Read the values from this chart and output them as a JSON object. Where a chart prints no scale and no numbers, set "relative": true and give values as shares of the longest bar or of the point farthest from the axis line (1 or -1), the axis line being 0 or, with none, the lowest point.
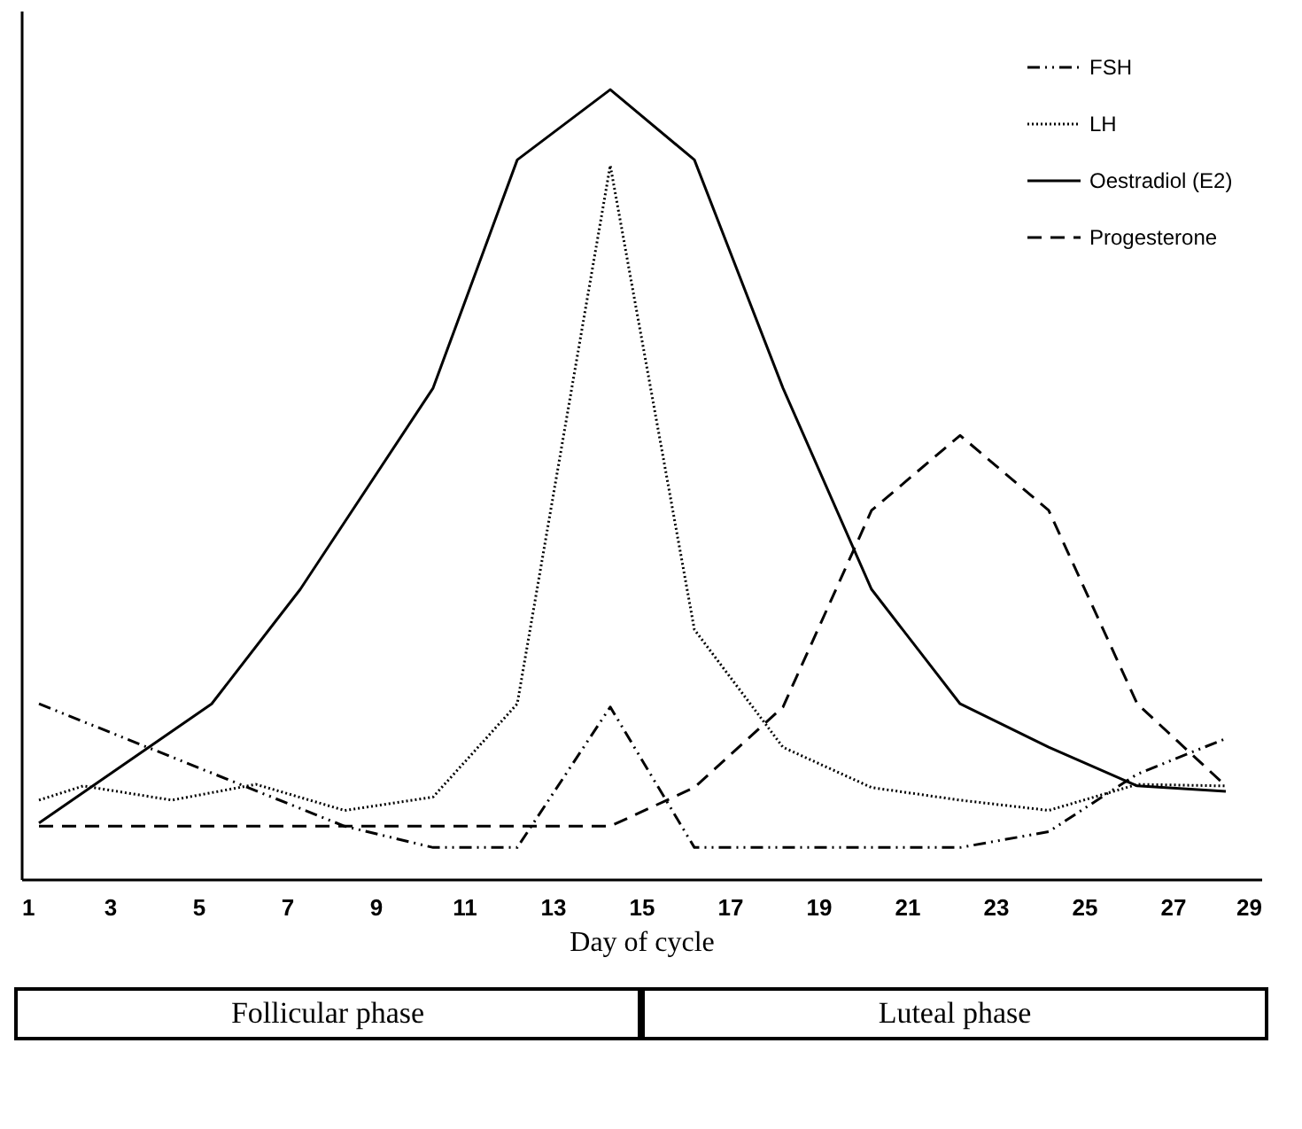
{
  "chart_data": {
    "type": "line",
    "relative": true,
    "xlabel": "Day of cycle",
    "xlim": [
      1,
      29
    ],
    "xticks": [
      1,
      3,
      5,
      7,
      9,
      11,
      13,
      15,
      17,
      19,
      21,
      23,
      25,
      27,
      29
    ],
    "grid": false,
    "legend": "top right",
    "marker": "none",
    "annotations": [
      "Follicular phase",
      "Luteal phase"
    ],
    "series": [
      {
        "name": "FSH",
        "color": "#000000",
        "line_style": "dashdot",
        "x": [
          1.4,
          8.3,
          10.3,
          12.2,
          14.3,
          16.2,
          22.2,
          24.2,
          26.2,
          28.2
        ],
        "values": [
          0.222,
          0.067,
          0.04,
          0.04,
          0.218,
          0.04,
          0.04,
          0.06,
          0.133,
          0.178
        ]
      },
      {
        "name": "LH",
        "color": "#000000",
        "line_style": "dotted",
        "x": [
          1.4,
          2.4,
          4.4,
          6.3,
          8.3,
          10.3,
          12.2,
          14.3,
          16.2,
          18.2,
          20.2,
          22.2,
          24.2,
          26.2,
          28.2
        ],
        "values": [
          0.1,
          0.118,
          0.1,
          0.12,
          0.087,
          0.104,
          0.222,
          0.904,
          0.316,
          0.167,
          0.116,
          0.1,
          0.087,
          0.12,
          0.118
        ]
      },
      {
        "name": "Oestradiol (E2)",
        "color": "#000000",
        "line_style": "solid",
        "x": [
          1.4,
          5.3,
          7.3,
          10.3,
          12.2,
          14.3,
          16.2,
          18.2,
          20.2,
          22.2,
          24.2,
          26.2,
          28.2
        ],
        "values": [
          0.071,
          0.222,
          0.367,
          0.622,
          0.911,
          1,
          0.911,
          0.622,
          0.367,
          0.222,
          0.167,
          0.118,
          0.111
        ]
      },
      {
        "name": "Progesterone",
        "color": "#000000",
        "line_style": "dashed",
        "x": [
          1.4,
          14.3,
          16.2,
          18.2,
          20.2,
          22.2,
          24.2,
          26.2,
          28.2
        ],
        "values": [
          0.067,
          0.067,
          0.116,
          0.218,
          0.467,
          0.562,
          0.467,
          0.222,
          0.118
        ]
      }
    ]
  }
}
